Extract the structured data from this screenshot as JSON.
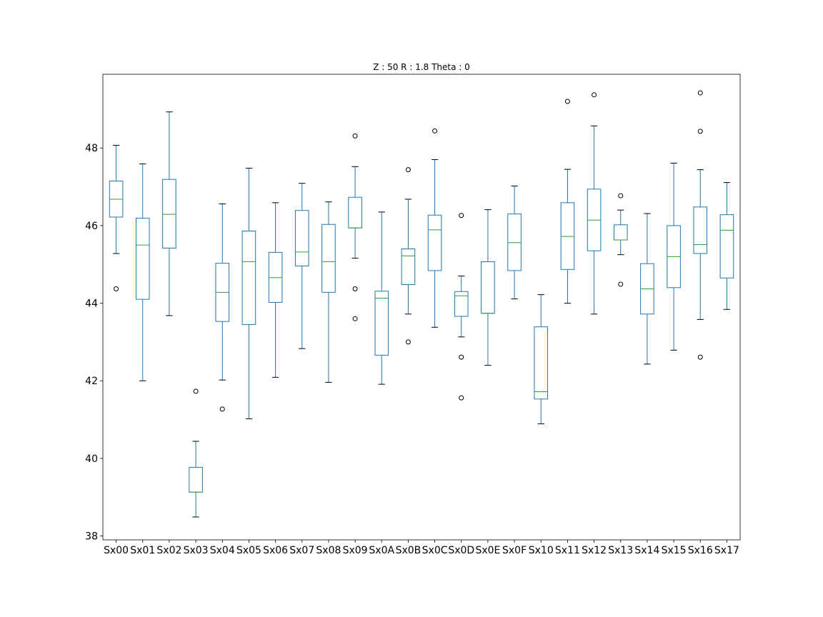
{
  "chart_data": {
    "type": "box",
    "title": "Z : 50 R : 1.8  Theta : 0",
    "xlabel": "",
    "ylabel": "",
    "ylim": [
      37.9,
      49.9
    ],
    "yticks": [
      38,
      40,
      42,
      44,
      46,
      48
    ],
    "grid": false,
    "colors": {
      "box": "#1f77b4",
      "median": "#2ca02c",
      "flier": "#000000"
    },
    "categories": [
      "Sx00",
      "Sx01",
      "Sx02",
      "Sx03",
      "Sx04",
      "Sx05",
      "Sx06",
      "Sx07",
      "Sx08",
      "Sx09",
      "Sx0A",
      "Sx0B",
      "Sx0C",
      "Sx0D",
      "Sx0E",
      "Sx0F",
      "Sx10",
      "Sx11",
      "Sx12",
      "Sx13",
      "Sx14",
      "Sx15",
      "Sx16",
      "Sx17"
    ],
    "boxes": [
      {
        "whislo": 45.28,
        "q1": 46.22,
        "med": 46.68,
        "q3": 47.15,
        "whishi": 48.07,
        "fliers": [
          44.37
        ]
      },
      {
        "whislo": 42.0,
        "q1": 44.1,
        "med": 45.5,
        "q3": 46.19,
        "whishi": 47.59,
        "fliers": []
      },
      {
        "whislo": 43.68,
        "q1": 45.42,
        "med": 46.29,
        "q3": 47.19,
        "whishi": 48.93,
        "fliers": []
      },
      {
        "whislo": 38.49,
        "q1": 39.13,
        "med": 39.13,
        "q3": 39.77,
        "whishi": 40.44,
        "fliers": [
          41.73
        ]
      },
      {
        "whislo": 42.02,
        "q1": 43.53,
        "med": 44.28,
        "q3": 45.03,
        "whishi": 46.56,
        "fliers": [
          41.27
        ]
      },
      {
        "whislo": 41.02,
        "q1": 43.45,
        "med": 45.07,
        "q3": 45.86,
        "whishi": 47.48,
        "fliers": []
      },
      {
        "whislo": 42.09,
        "q1": 44.02,
        "med": 44.66,
        "q3": 45.31,
        "whishi": 46.59,
        "fliers": []
      },
      {
        "whislo": 42.83,
        "q1": 44.96,
        "med": 45.32,
        "q3": 46.39,
        "whishi": 47.09,
        "fliers": []
      },
      {
        "whislo": 41.96,
        "q1": 44.28,
        "med": 45.07,
        "q3": 46.03,
        "whishi": 46.61,
        "fliers": []
      },
      {
        "whislo": 45.16,
        "q1": 45.94,
        "med": 45.94,
        "q3": 46.73,
        "whishi": 47.52,
        "fliers": [
          48.31,
          44.37,
          43.6
        ]
      },
      {
        "whislo": 41.91,
        "q1": 42.66,
        "med": 44.13,
        "q3": 44.31,
        "whishi": 46.35,
        "fliers": []
      },
      {
        "whislo": 43.72,
        "q1": 44.48,
        "med": 45.22,
        "q3": 45.4,
        "whishi": 46.68,
        "fliers": [
          47.44,
          43.0
        ]
      },
      {
        "whislo": 43.38,
        "q1": 44.84,
        "med": 45.89,
        "q3": 46.27,
        "whishi": 47.7,
        "fliers": [
          48.44
        ]
      },
      {
        "whislo": 43.13,
        "q1": 43.66,
        "med": 44.19,
        "q3": 44.3,
        "whishi": 44.7,
        "fliers": [
          46.26,
          42.61,
          41.56
        ]
      },
      {
        "whislo": 42.4,
        "q1": 43.74,
        "med": 43.74,
        "q3": 45.07,
        "whishi": 46.41,
        "fliers": []
      },
      {
        "whislo": 44.11,
        "q1": 44.84,
        "med": 45.56,
        "q3": 46.3,
        "whishi": 47.02,
        "fliers": []
      },
      {
        "whislo": 40.89,
        "q1": 41.53,
        "med": 41.72,
        "q3": 43.39,
        "whishi": 44.22,
        "fliers": []
      },
      {
        "whislo": 44.0,
        "q1": 44.87,
        "med": 45.72,
        "q3": 46.59,
        "whishi": 47.45,
        "fliers": [
          49.2
        ]
      },
      {
        "whislo": 43.72,
        "q1": 45.35,
        "med": 46.14,
        "q3": 46.94,
        "whishi": 48.57,
        "fliers": [
          49.37
        ]
      },
      {
        "whislo": 45.25,
        "q1": 45.63,
        "med": 45.63,
        "q3": 46.02,
        "whishi": 46.4,
        "fliers": [
          46.77,
          44.49
        ]
      },
      {
        "whislo": 42.43,
        "q1": 43.72,
        "med": 44.37,
        "q3": 45.02,
        "whishi": 46.31,
        "fliers": []
      },
      {
        "whislo": 42.79,
        "q1": 44.4,
        "med": 45.2,
        "q3": 46.0,
        "whishi": 47.61,
        "fliers": []
      },
      {
        "whislo": 43.58,
        "q1": 45.28,
        "med": 45.51,
        "q3": 46.48,
        "whishi": 47.44,
        "fliers": [
          49.42,
          48.43,
          42.61
        ]
      },
      {
        "whislo": 43.84,
        "q1": 44.65,
        "med": 45.88,
        "q3": 46.28,
        "whishi": 47.11,
        "fliers": []
      }
    ]
  }
}
